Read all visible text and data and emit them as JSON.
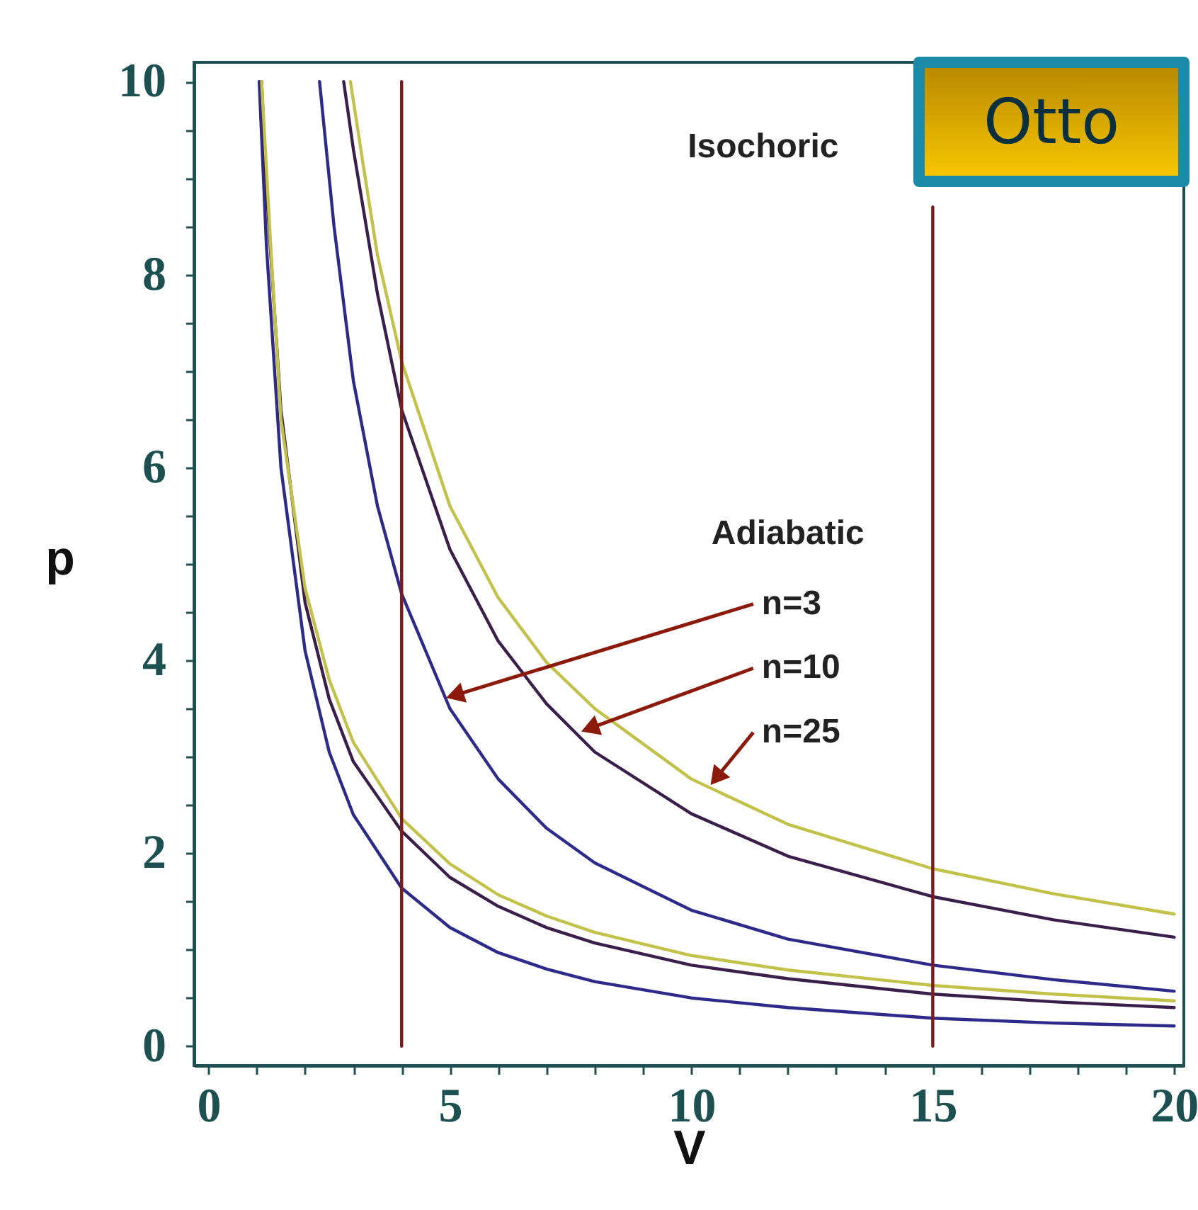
{
  "chart_data": {
    "type": "line",
    "title": "Otto",
    "xlabel": "V",
    "ylabel": "p",
    "xlim": [
      -0.3,
      20.2
    ],
    "ylim": [
      -0.2,
      10.2
    ],
    "xticks": [
      0,
      {
        "value": 1,
        "label": null
      },
      {
        "value": 2,
        "label": null
      },
      {
        "value": 3,
        "label": null
      },
      {
        "value": 4,
        "label": null
      },
      5,
      {
        "value": 6,
        "label": null
      },
      {
        "value": 7,
        "label": null
      },
      {
        "value": 8,
        "label": null
      },
      {
        "value": 9,
        "label": null
      },
      10,
      {
        "value": 11,
        "label": null
      },
      {
        "value": 12,
        "label": null
      },
      {
        "value": 13,
        "label": null
      },
      {
        "value": 14,
        "label": null
      },
      15,
      {
        "value": 16,
        "label": null
      },
      {
        "value": 17,
        "label": null
      },
      {
        "value": 18,
        "label": null
      },
      {
        "value": 19,
        "label": null
      },
      20
    ],
    "yticks": [
      0,
      {
        "value": 0.5,
        "label": null
      },
      {
        "value": 1,
        "label": null
      },
      {
        "value": 1.5,
        "label": null
      },
      2,
      {
        "value": 2.5,
        "label": null
      },
      {
        "value": 3,
        "label": null
      },
      {
        "value": 3.5,
        "label": null
      },
      4,
      {
        "value": 4.5,
        "label": null
      },
      {
        "value": 5,
        "label": null
      },
      {
        "value": 5.5,
        "label": null
      },
      6,
      {
        "value": 6.5,
        "label": null
      },
      {
        "value": 7,
        "label": null
      },
      {
        "value": 7.5,
        "label": null
      },
      8,
      {
        "value": 8.5,
        "label": null
      },
      {
        "value": 9,
        "label": null
      },
      {
        "value": 9.5,
        "label": null
      },
      10
    ],
    "series": [
      {
        "color": "#2e2a8a",
        "x": [
          2.3,
          2.6,
          3,
          3.5,
          4,
          5,
          6,
          7,
          8,
          10,
          12,
          15,
          17.5,
          20
        ],
        "values": [
          10,
          8.5,
          6.9,
          5.6,
          4.69,
          3.5,
          2.77,
          2.26,
          1.9,
          1.41,
          1.11,
          0.84,
          0.69,
          0.57
        ]
      },
      {
        "color": "#3a1f4a",
        "x": [
          2.8,
          3,
          3.5,
          4,
          5,
          6,
          7,
          8,
          10,
          12,
          15,
          17.5,
          20
        ],
        "values": [
          10,
          9.3,
          7.8,
          6.6,
          5.15,
          4.2,
          3.55,
          3.05,
          2.41,
          1.97,
          1.55,
          1.31,
          1.13
        ]
      },
      {
        "color": "#c2c24a",
        "x": [
          2.94,
          3.2,
          3.5,
          4,
          5,
          6,
          7,
          8,
          10,
          12,
          15,
          17.5,
          20
        ],
        "values": [
          10,
          9.15,
          8.2,
          7.1,
          5.6,
          4.65,
          3.98,
          3.5,
          2.77,
          2.3,
          1.84,
          1.58,
          1.37
        ]
      },
      {
        "color": "#2e2a8a",
        "x": [
          1.05,
          1.2,
          1.5,
          2,
          2.5,
          3,
          4,
          5,
          6,
          7,
          8,
          10,
          12,
          15,
          17.5,
          20
        ],
        "values": [
          10,
          8.3,
          6,
          4.1,
          3.05,
          2.4,
          1.64,
          1.23,
          0.97,
          0.8,
          0.67,
          0.5,
          0.4,
          0.29,
          0.24,
          0.21
        ]
      },
      {
        "color": "#3a1f4a",
        "x": [
          1.1,
          1.2,
          1.5,
          2,
          2.5,
          3,
          4,
          5,
          6,
          7,
          8,
          10,
          12,
          15,
          17.5,
          20
        ],
        "values": [
          10,
          8.9,
          6.6,
          4.6,
          3.6,
          2.95,
          2.23,
          1.75,
          1.45,
          1.23,
          1.07,
          0.84,
          0.7,
          0.54,
          0.46,
          0.4
        ]
      },
      {
        "color": "#c2c24a",
        "x": [
          1.1,
          1.3,
          1.5,
          2,
          2.5,
          3,
          4,
          5,
          6,
          7,
          8,
          10,
          12,
          15,
          17.5,
          20
        ],
        "values": [
          10,
          8.2,
          6.5,
          4.75,
          3.8,
          3.15,
          2.36,
          1.89,
          1.57,
          1.35,
          1.18,
          0.94,
          0.79,
          0.63,
          0.54,
          0.47
        ]
      },
      {
        "color": "#7a1c1c",
        "x": [
          4,
          4,
          4
        ],
        "values": [
          0,
          5,
          10
        ]
      },
      {
        "color": "#7a1c1c",
        "x": [
          15,
          15,
          15
        ],
        "values": [
          0,
          5,
          8.7
        ]
      }
    ],
    "annotations": [
      "Isochoric",
      "Adiabatic",
      {
        "text": "n=3",
        "x": 4.85,
        "y": 3.6
      },
      {
        "text": "n=10",
        "x": 7.65,
        "y": 3.25
      },
      {
        "text": "n=25",
        "x": 10.35,
        "y": 2.68
      }
    ]
  }
}
